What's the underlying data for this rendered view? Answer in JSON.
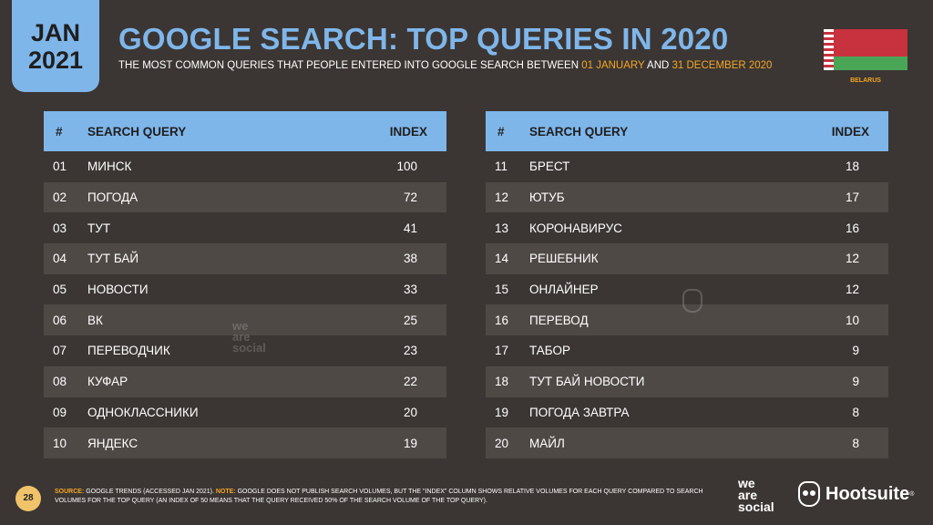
{
  "date_badge": {
    "month": "JAN",
    "year": "2021"
  },
  "title": "GOOGLE SEARCH: TOP QUERIES IN 2020",
  "subtitle": {
    "prefix": "THE MOST COMMON QUERIES THAT PEOPLE ENTERED INTO GOOGLE SEARCH BETWEEN ",
    "start": "01 JANUARY",
    "middle": " AND ",
    "end": "31 DECEMBER 2020"
  },
  "flag": {
    "label": "BELARUS"
  },
  "colors": {
    "accent": "#7fb6ea",
    "highlight": "#f5a623",
    "background": "#3b3634",
    "row_alt": "#4f4946"
  },
  "table_headers": {
    "num": "#",
    "query": "SEARCH QUERY",
    "index": "INDEX"
  },
  "left_rows": [
    {
      "num": "01",
      "query": "МИНСК",
      "index": "100"
    },
    {
      "num": "02",
      "query": "ПОГОДА",
      "index": "72"
    },
    {
      "num": "03",
      "query": "ТУТ",
      "index": "41"
    },
    {
      "num": "04",
      "query": "ТУТ БАЙ",
      "index": "38"
    },
    {
      "num": "05",
      "query": "НОВОСТИ",
      "index": "33"
    },
    {
      "num": "06",
      "query": "ВК",
      "index": "25"
    },
    {
      "num": "07",
      "query": "ПЕРЕВОДЧИК",
      "index": "23"
    },
    {
      "num": "08",
      "query": "КУФАР",
      "index": "22"
    },
    {
      "num": "09",
      "query": "ОДНОКЛАССНИКИ",
      "index": "20"
    },
    {
      "num": "10",
      "query": "ЯНДЕКС",
      "index": "19"
    }
  ],
  "right_rows": [
    {
      "num": "11",
      "query": "БРЕСТ",
      "index": "18"
    },
    {
      "num": "12",
      "query": "ЮТУБ",
      "index": "17"
    },
    {
      "num": "13",
      "query": "КОРОНАВИРУС",
      "index": "16"
    },
    {
      "num": "14",
      "query": "РЕШЕБНИК",
      "index": "12"
    },
    {
      "num": "15",
      "query": "ОНЛАЙНЕР",
      "index": "12"
    },
    {
      "num": "16",
      "query": "ПЕРЕВОД",
      "index": "10"
    },
    {
      "num": "17",
      "query": "ТАБОР",
      "index": "9"
    },
    {
      "num": "18",
      "query": "ТУТ БАЙ НОВОСТИ",
      "index": "9"
    },
    {
      "num": "19",
      "query": "ПОГОДА ЗАВТРА",
      "index": "8"
    },
    {
      "num": "20",
      "query": "МАЙЛ",
      "index": "8"
    }
  ],
  "watermark": {
    "line1": "we",
    "line2": "are",
    "line3": "social"
  },
  "page_number": "28",
  "footer": {
    "source_label": "SOURCE:",
    "source_text": " GOOGLE TRENDS (ACCESSED JAN 2021). ",
    "note_label": "NOTE:",
    "note_text": " GOOGLE DOES NOT PUBLISH SEARCH VOLUMES, BUT THE \"INDEX\" COLUMN SHOWS RELATIVE VOLUMES FOR EACH QUERY COMPARED TO SEARCH VOLUMES FOR THE TOP QUERY (AN INDEX OF 50 MEANS THAT THE QUERY RECEIVED 50% OF THE SEARCH VOLUME OF THE TOP QUERY)."
  },
  "logos": {
    "was_line1": "we",
    "was_line2": "are",
    "was_line3": "social",
    "hootsuite": "Hootsuite",
    "hootsuite_mark": "®"
  }
}
